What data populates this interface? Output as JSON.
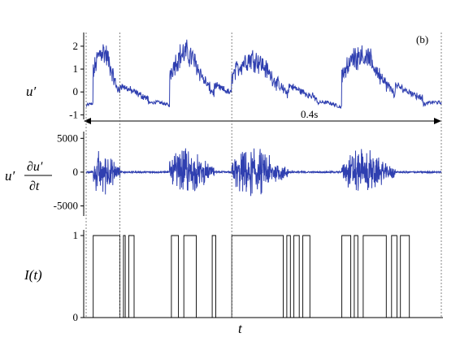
{
  "chart_data": [
    {
      "type": "line",
      "panel": "top",
      "ylabel": "u′",
      "annotation": "(b)",
      "ylim": [
        -1.2,
        2.6
      ],
      "yticks": [
        "2",
        "1",
        "0",
        "-1"
      ],
      "ytick_values": [
        2,
        1,
        0,
        -1
      ],
      "x_range": [
        0,
        1
      ],
      "interval_label": "0.4s",
      "interval": [
        0,
        1
      ],
      "series_color": "#2f3fb0",
      "bursts": [
        {
          "start": 0.02,
          "end": 0.095,
          "peak": 2.3
        },
        {
          "start": 0.235,
          "end": 0.36,
          "peak": 2.2
        },
        {
          "start": 0.41,
          "end": 0.57,
          "peak": 1.9
        },
        {
          "start": 0.72,
          "end": 0.87,
          "peak": 2.1
        }
      ]
    },
    {
      "type": "line",
      "panel": "middle",
      "ylabel_num": "∂u′",
      "ylabel_den": "∂t",
      "ylabel_prefix": "u′",
      "ylim": [
        -6500,
        6000
      ],
      "yticks": [
        "5000",
        "0",
        "-5000"
      ],
      "ytick_values": [
        5000,
        0,
        -5000
      ],
      "series_color": "#2f3fb0"
    },
    {
      "type": "line",
      "panel": "bottom",
      "ylabel": "I(t)",
      "xlabel": "t",
      "ylim": [
        0,
        1
      ],
      "yticks": [
        "1",
        "0"
      ],
      "ytick_values": [
        1,
        0
      ],
      "pulses": [
        [
          0.02,
          0.095
        ],
        [
          0.105,
          0.11
        ],
        [
          0.12,
          0.135
        ],
        [
          0.24,
          0.26
        ],
        [
          0.275,
          0.31
        ],
        [
          0.355,
          0.365
        ],
        [
          0.41,
          0.555
        ],
        [
          0.565,
          0.575
        ],
        [
          0.585,
          0.6
        ],
        [
          0.61,
          0.63
        ],
        [
          0.72,
          0.745
        ],
        [
          0.755,
          0.765
        ],
        [
          0.78,
          0.845
        ],
        [
          0.86,
          0.875
        ],
        [
          0.885,
          0.91
        ]
      ]
    }
  ],
  "dashed_markers": [
    0.0,
    0.095,
    0.41,
    1.0
  ]
}
